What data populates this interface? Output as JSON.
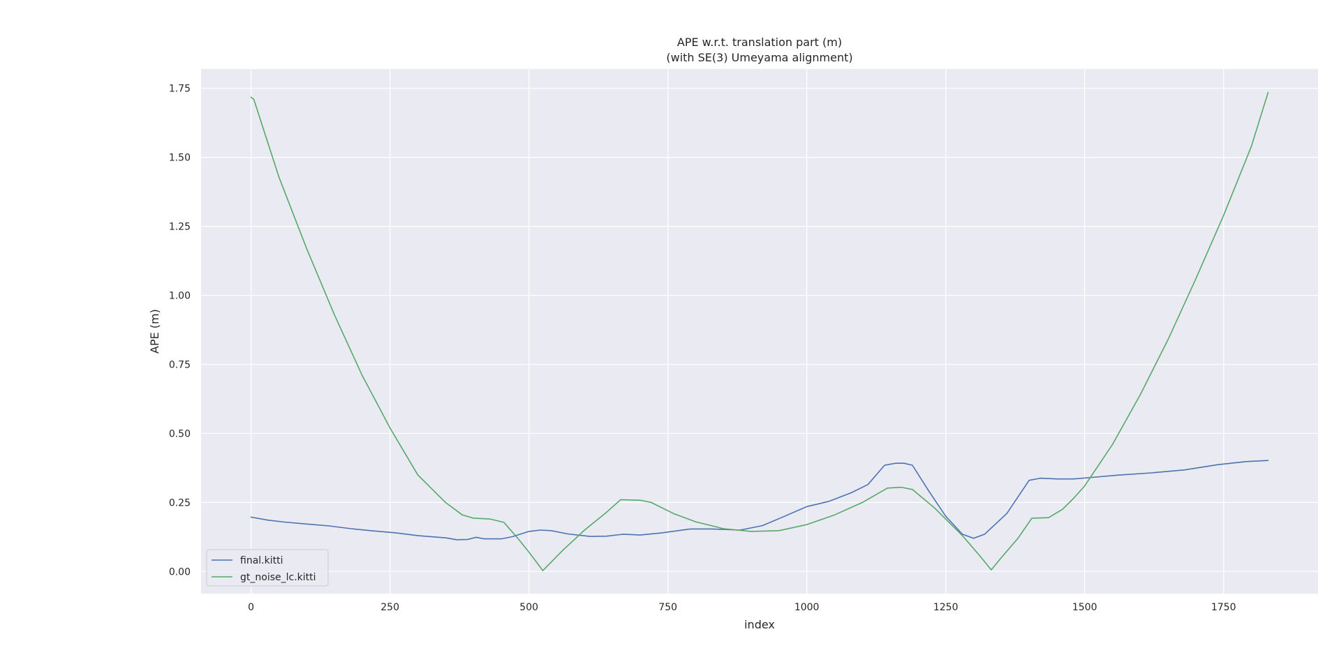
{
  "chart_data": {
    "type": "line",
    "title": [
      "APE w.r.t. translation part (m)",
      "(with SE(3) Umeyama alignment)"
    ],
    "xlabel": "index",
    "ylabel": "APE (m)",
    "xlim": [
      -90,
      1920
    ],
    "ylim": [
      -0.08,
      1.82
    ],
    "xticks": [
      0,
      250,
      500,
      750,
      1000,
      1250,
      1500,
      1750
    ],
    "yticks": [
      0.0,
      0.25,
      0.5,
      0.75,
      1.0,
      1.25,
      1.5,
      1.75
    ],
    "xtick_labels": [
      "0",
      "250",
      "500",
      "750",
      "1000",
      "1250",
      "1500",
      "1750"
    ],
    "ytick_labels": [
      "0.00",
      "0.25",
      "0.50",
      "0.75",
      "1.00",
      "1.25",
      "1.50",
      "1.75"
    ],
    "grid": true,
    "legend_position": "lower-left",
    "background": "#eaeaf2",
    "series": [
      {
        "name": "final.kitti",
        "color": "#4c72b0",
        "points": [
          [
            0,
            0.197
          ],
          [
            30,
            0.186
          ],
          [
            60,
            0.179
          ],
          [
            100,
            0.172
          ],
          [
            140,
            0.165
          ],
          [
            180,
            0.155
          ],
          [
            220,
            0.147
          ],
          [
            260,
            0.14
          ],
          [
            300,
            0.13
          ],
          [
            350,
            0.122
          ],
          [
            370,
            0.115
          ],
          [
            390,
            0.116
          ],
          [
            405,
            0.124
          ],
          [
            420,
            0.118
          ],
          [
            450,
            0.118
          ],
          [
            470,
            0.126
          ],
          [
            500,
            0.145
          ],
          [
            520,
            0.15
          ],
          [
            540,
            0.148
          ],
          [
            570,
            0.136
          ],
          [
            610,
            0.127
          ],
          [
            640,
            0.128
          ],
          [
            670,
            0.135
          ],
          [
            700,
            0.132
          ],
          [
            740,
            0.14
          ],
          [
            790,
            0.154
          ],
          [
            830,
            0.154
          ],
          [
            880,
            0.15
          ],
          [
            920,
            0.166
          ],
          [
            960,
            0.2
          ],
          [
            1000,
            0.235
          ],
          [
            1040,
            0.254
          ],
          [
            1080,
            0.285
          ],
          [
            1110,
            0.315
          ],
          [
            1140,
            0.385
          ],
          [
            1160,
            0.392
          ],
          [
            1175,
            0.392
          ],
          [
            1190,
            0.385
          ],
          [
            1220,
            0.29
          ],
          [
            1250,
            0.2
          ],
          [
            1280,
            0.135
          ],
          [
            1300,
            0.12
          ],
          [
            1320,
            0.135
          ],
          [
            1360,
            0.21
          ],
          [
            1400,
            0.33
          ],
          [
            1420,
            0.338
          ],
          [
            1450,
            0.335
          ],
          [
            1480,
            0.335
          ],
          [
            1520,
            0.342
          ],
          [
            1560,
            0.349
          ],
          [
            1620,
            0.357
          ],
          [
            1680,
            0.368
          ],
          [
            1740,
            0.387
          ],
          [
            1790,
            0.398
          ],
          [
            1830,
            0.402
          ]
        ]
      },
      {
        "name": "gt_noise_lc.kitti",
        "color": "#55a868",
        "points": [
          [
            0,
            1.718
          ],
          [
            5,
            1.71
          ],
          [
            50,
            1.43
          ],
          [
            100,
            1.17
          ],
          [
            150,
            0.93
          ],
          [
            200,
            0.71
          ],
          [
            250,
            0.52
          ],
          [
            300,
            0.35
          ],
          [
            350,
            0.25
          ],
          [
            380,
            0.205
          ],
          [
            400,
            0.193
          ],
          [
            430,
            0.19
          ],
          [
            455,
            0.178
          ],
          [
            480,
            0.12
          ],
          [
            500,
            0.07
          ],
          [
            525,
            0.003
          ],
          [
            560,
            0.075
          ],
          [
            600,
            0.15
          ],
          [
            640,
            0.215
          ],
          [
            665,
            0.26
          ],
          [
            700,
            0.258
          ],
          [
            720,
            0.25
          ],
          [
            760,
            0.21
          ],
          [
            800,
            0.18
          ],
          [
            850,
            0.155
          ],
          [
            900,
            0.145
          ],
          [
            950,
            0.148
          ],
          [
            1000,
            0.17
          ],
          [
            1050,
            0.205
          ],
          [
            1100,
            0.25
          ],
          [
            1145,
            0.302
          ],
          [
            1170,
            0.305
          ],
          [
            1190,
            0.297
          ],
          [
            1230,
            0.23
          ],
          [
            1280,
            0.13
          ],
          [
            1310,
            0.06
          ],
          [
            1332,
            0.006
          ],
          [
            1350,
            0.05
          ],
          [
            1380,
            0.12
          ],
          [
            1405,
            0.193
          ],
          [
            1435,
            0.195
          ],
          [
            1460,
            0.225
          ],
          [
            1480,
            0.265
          ],
          [
            1500,
            0.31
          ],
          [
            1550,
            0.46
          ],
          [
            1600,
            0.64
          ],
          [
            1650,
            0.84
          ],
          [
            1700,
            1.06
          ],
          [
            1750,
            1.29
          ],
          [
            1800,
            1.54
          ],
          [
            1830,
            1.735
          ]
        ]
      }
    ]
  }
}
